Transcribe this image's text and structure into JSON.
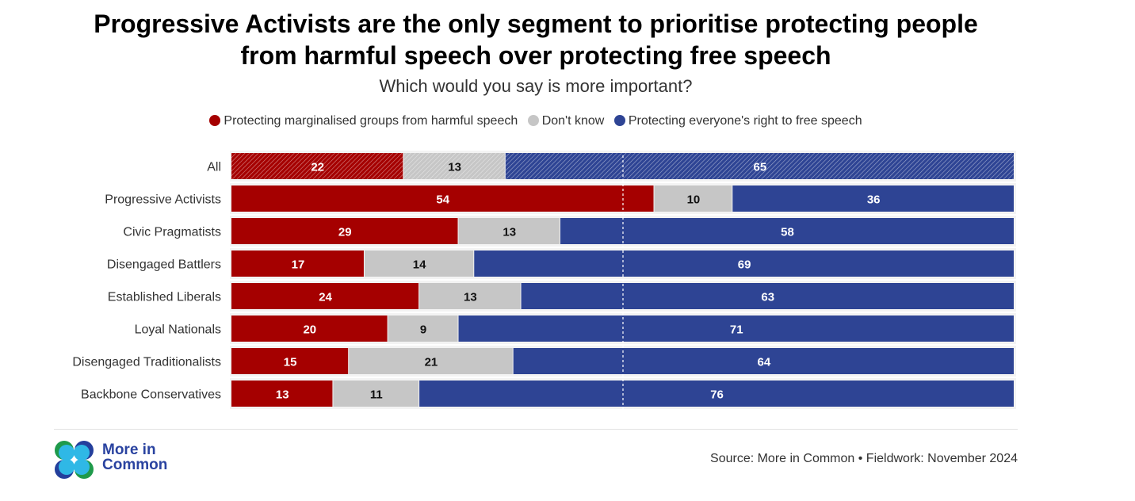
{
  "title_line1": "Progressive Activists are the only segment to prioritise protecting people",
  "title_line2": "from harmful speech over protecting free speech",
  "subtitle": "Which would you say is more important?",
  "legend": [
    {
      "label": "Protecting marginalised groups from harmful speech",
      "color": "#a50000"
    },
    {
      "label": "Don't know",
      "color": "#c6c6c6"
    },
    {
      "label": "Protecting everyone's right to free speech",
      "color": "#2e4494"
    }
  ],
  "source": "Source: More in Common • Fieldwork: November 2024",
  "logo": {
    "line1": "More in",
    "line2": "Common"
  },
  "chart_data": {
    "type": "bar",
    "stacked": true,
    "orientation": "horizontal",
    "xlim": [
      0,
      100
    ],
    "reference_line": 50,
    "categories": [
      "All",
      "Progressive Activists",
      "Civic Pragmatists",
      "Disengaged Battlers",
      "Established Liberals",
      "Loyal Nationals",
      "Disengaged Traditionalists",
      "Backbone Conservatives"
    ],
    "series": [
      {
        "name": "Protecting marginalised groups from harmful speech",
        "values": [
          22,
          54,
          29,
          17,
          24,
          20,
          15,
          13
        ]
      },
      {
        "name": "Don't know",
        "values": [
          13,
          10,
          13,
          14,
          13,
          9,
          21,
          11
        ]
      },
      {
        "name": "Protecting everyone's right to free speech",
        "values": [
          65,
          36,
          58,
          69,
          63,
          71,
          64,
          76
        ]
      }
    ],
    "hatched_categories": [
      "All"
    ]
  }
}
